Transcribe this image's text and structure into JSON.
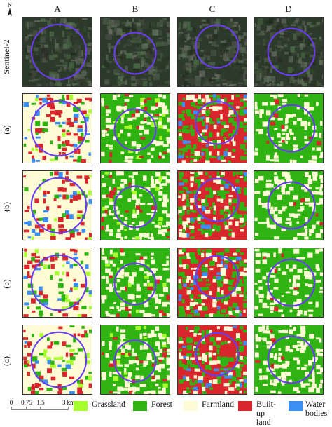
{
  "columns": [
    "A",
    "B",
    "C",
    "D"
  ],
  "rows": [
    "Sentinel-2",
    "(a)",
    "(b)",
    "(c)",
    "(d)"
  ],
  "north_label": "N",
  "scale": {
    "ticks": [
      "0",
      "0.75",
      "1.5",
      "3 km"
    ]
  },
  "legend": [
    {
      "label": "Grassland",
      "color": "#a8ff2e"
    },
    {
      "label": "Forest",
      "color": "#2fb313"
    },
    {
      "label": "Farmland",
      "color": "#fffbd4"
    },
    {
      "label": "Built-up\nland",
      "color": "#d9262c"
    },
    {
      "label": "Water\nbodies",
      "color": "#3b8ff2"
    }
  ],
  "colors": {
    "circle": "#6a3df0",
    "satellite": "#2c3a2c"
  }
}
